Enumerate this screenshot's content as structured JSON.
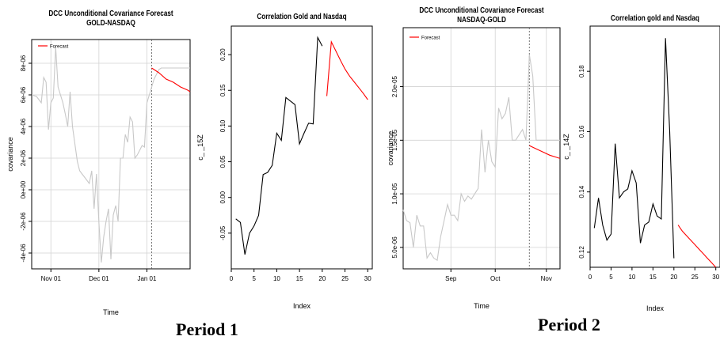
{
  "periods": [
    "Period 1",
    "Period 2"
  ],
  "colors": {
    "history": "#000000",
    "history_light": "#c8c8c8",
    "forecast": "#ff0000",
    "grid": "#d3d3d3"
  },
  "chart_data": [
    {
      "type": "line",
      "title": "DCC Unconditional Covariance Forecast",
      "subtitle": "GOLD-NASDAQ",
      "xlabel": "Time",
      "ylabel": "covariance",
      "xticks": [
        "Nov 01",
        "Dec 01",
        "Jan 01"
      ],
      "yticks": [
        "-4e-06",
        "-2e-06",
        "0e+00",
        "2e-06",
        "4e-06",
        "6e-06",
        "8e-06"
      ],
      "ylim": [
        -5e-06,
        9.5e-06
      ],
      "grid": true,
      "legend": {
        "position": "top-left",
        "entries": [
          "Forecast"
        ]
      },
      "series": [
        {
          "name": "",
          "color": "light",
          "x": [
            0,
            2,
            4,
            5,
            6,
            7,
            8,
            9,
            10,
            11,
            13,
            14,
            15,
            16,
            17,
            19,
            20,
            21,
            22,
            23,
            24,
            25,
            26,
            27,
            28,
            29,
            30,
            31,
            32,
            33,
            34,
            35,
            36,
            37,
            38,
            39,
            40,
            41,
            42,
            43,
            44,
            45,
            46,
            47,
            48,
            49,
            50,
            51,
            52,
            53,
            54,
            55,
            56,
            57,
            58,
            59,
            60,
            61,
            62,
            63,
            64,
            65,
            66
          ],
          "y": [
            6e-06,
            5.9e-06,
            5.5e-06,
            7.1e-06,
            6.8e-06,
            3.8e-06,
            5.5e-06,
            5.8e-06,
            9e-06,
            6.5e-06,
            5.5e-06,
            4.8e-06,
            4e-06,
            6.2e-06,
            4e-06,
            1.8e-06,
            1.2e-06,
            1e-06,
            8e-07,
            6e-07,
            4e-07,
            1.2e-06,
            -1.2e-06,
            1e-06,
            -2e-06,
            -4.6e-06,
            -3e-06,
            -2e-06,
            -1.2e-06,
            -4.4e-06,
            -1.6e-06,
            -1e-06,
            -2e-06,
            2e-06,
            2e-06,
            3.5e-06,
            3e-06,
            4.6e-06,
            4.3e-06,
            2e-06,
            2.2e-06,
            2.5e-06,
            2.8e-06,
            2.7e-06,
            5.5e-06,
            6e-06,
            6.5e-06,
            7e-06,
            7.3e-06,
            7.6e-06,
            7.7e-06,
            7.7e-06,
            7.7e-06,
            7.7e-06,
            7.7e-06,
            7.7e-06,
            7.7e-06,
            7.7e-06,
            7.7e-06,
            7.7e-06,
            7.7e-06,
            7.7e-06,
            7.7e-06
          ]
        },
        {
          "name": "Forecast",
          "color": "forecast",
          "x": [
            50,
            53,
            56,
            59,
            62,
            65,
            66
          ],
          "y": [
            7.7e-06,
            7.4e-06,
            7e-06,
            6.8e-06,
            6.5e-06,
            6.3e-06,
            6.2e-06
          ]
        }
      ]
    },
    {
      "type": "line",
      "title": "Correlation Gold and Nasdaq",
      "xlabel": "Index",
      "ylabel": "c_ _15Z",
      "xticks": [
        0,
        5,
        10,
        15,
        20,
        25,
        30
      ],
      "yticks": [
        -0.05,
        0.0,
        0.05,
        0.1,
        0.15,
        0.2
      ],
      "ylim": [
        -0.1,
        0.24
      ],
      "series": [
        {
          "name": "",
          "color": "history",
          "x": [
            1,
            2,
            3,
            4,
            5,
            6,
            7,
            8,
            9,
            10,
            11,
            12,
            13,
            14,
            15,
            16,
            17,
            18,
            19,
            20
          ],
          "y": [
            -0.03,
            -0.035,
            -0.08,
            -0.05,
            -0.04,
            -0.025,
            0.032,
            0.035,
            0.045,
            0.09,
            0.08,
            0.14,
            0.135,
            0.13,
            0.075,
            0.09,
            0.104,
            0.103,
            0.224,
            0.212
          ]
        },
        {
          "name": "Forecast",
          "color": "forecast",
          "x": [
            21,
            22,
            23,
            24,
            25,
            26,
            27,
            28,
            29,
            30
          ],
          "y": [
            0.142,
            0.218,
            0.205,
            0.192,
            0.18,
            0.17,
            0.162,
            0.154,
            0.146,
            0.137
          ]
        }
      ]
    },
    {
      "type": "line",
      "title": "DCC Unconditional Covariance Forecast",
      "subtitle": "NASDAQ-GOLD",
      "xlabel": "Time",
      "ylabel": "covariance",
      "xticks": [
        "Sep",
        "Oct",
        "Nov"
      ],
      "yticks": [
        "5.0e-06",
        "1.0e-05",
        "1.5e-05",
        "2.0e-05"
      ],
      "ylim": [
        3e-06,
        2.55e-05
      ],
      "grid": true,
      "legend": {
        "position": "top-left",
        "entries": [
          "Forecast"
        ]
      },
      "series": [
        {
          "name": "",
          "color": "light",
          "x": [
            0,
            1,
            2,
            3,
            4,
            5,
            6,
            7,
            8,
            9,
            10,
            11,
            12,
            13,
            14,
            15,
            16,
            17,
            18,
            19,
            20,
            21,
            22,
            23,
            24,
            25,
            26,
            27,
            28,
            29,
            30,
            31,
            32,
            33,
            34,
            35,
            36,
            37,
            38,
            39,
            40,
            41,
            42,
            43,
            44,
            45,
            46
          ],
          "y": [
            8.5e-06,
            7.5e-06,
            7.3e-06,
            5e-06,
            8e-06,
            7e-06,
            7e-06,
            4e-06,
            4.5e-06,
            4e-06,
            3.8e-06,
            6e-06,
            7.5e-06,
            9e-06,
            8e-06,
            8e-06,
            7.5e-06,
            1e-05,
            9.3e-06,
            9.8e-06,
            9.5e-06,
            1e-05,
            1.05e-05,
            1.6e-05,
            1.2e-05,
            1.5e-05,
            1.3e-05,
            1.25e-05,
            1.8e-05,
            1.7e-05,
            1.75e-05,
            1.9e-05,
            1.5e-05,
            1.5e-05,
            1.55e-05,
            1.6e-05,
            1.5e-05,
            2.3e-05,
            2.1e-05,
            1.5e-05,
            1.5e-05,
            1.5e-05,
            1.5e-05,
            1.5e-05,
            1.5e-05,
            1.5e-05,
            1.5e-05
          ]
        },
        {
          "name": "Forecast",
          "color": "forecast",
          "x": [
            37,
            39,
            41,
            43,
            45,
            46
          ],
          "y": [
            1.45e-05,
            1.42e-05,
            1.39e-05,
            1.36e-05,
            1.34e-05,
            1.33e-05
          ]
        }
      ]
    },
    {
      "type": "line",
      "title": "Correlation gold and Nasdaq",
      "xlabel": "Index",
      "ylabel": "c_ _14Z",
      "xticks": [
        0,
        5,
        10,
        15,
        20,
        25,
        30
      ],
      "yticks": [
        0.12,
        0.14,
        0.16,
        0.18
      ],
      "ylim": [
        0.115,
        0.195
      ],
      "series": [
        {
          "name": "",
          "color": "history",
          "x": [
            1,
            2,
            3,
            4,
            5,
            6,
            7,
            8,
            9,
            10,
            11,
            12,
            13,
            14,
            15,
            16,
            17,
            18,
            19,
            20
          ],
          "y": [
            0.128,
            0.138,
            0.129,
            0.124,
            0.126,
            0.156,
            0.138,
            0.14,
            0.141,
            0.147,
            0.143,
            0.123,
            0.129,
            0.13,
            0.136,
            0.132,
            0.131,
            0.191,
            0.16,
            0.118
          ]
        },
        {
          "name": "Forecast",
          "color": "forecast",
          "x": [
            21,
            22,
            23,
            24,
            25,
            26,
            27,
            28,
            29,
            30
          ],
          "y": [
            0.129,
            0.127,
            0.1255,
            0.124,
            0.1225,
            0.121,
            0.1195,
            0.118,
            0.1165,
            0.115
          ]
        }
      ]
    }
  ]
}
